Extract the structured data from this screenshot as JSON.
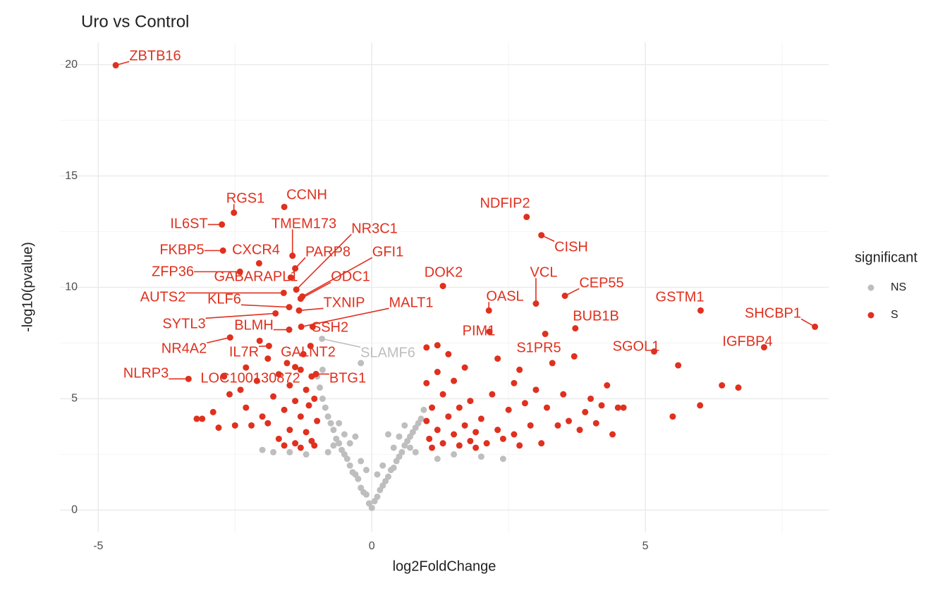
{
  "chart_data": {
    "type": "scatter",
    "title": "Uro vs Control",
    "x_label": "log2FoldChange",
    "y_label": "-log10(pvalue)",
    "xlim": [
      -5.7,
      8.35
    ],
    "ylim": [
      -1,
      21
    ],
    "xticks": [
      -5,
      0,
      5
    ],
    "yticks": [
      0,
      5,
      10,
      15,
      20
    ],
    "xminorticks": [
      -2.5,
      2.5,
      7.5
    ],
    "yminorticks": [
      2.5,
      7.5,
      12.5,
      17.5
    ],
    "grid": true,
    "legend_title": "significant",
    "legend_position": "right",
    "series": [
      {
        "name": "NS",
        "color": "#bebebe",
        "x": [
          -0.91,
          0,
          0.05,
          -0.05,
          0.1,
          -0.1,
          0.15,
          -0.15,
          0.2,
          -0.2,
          0.25,
          -0.25,
          0.3,
          -0.3,
          0.35,
          -0.35,
          0.4,
          -0.4,
          0.45,
          -0.45,
          0.5,
          -0.5,
          0.55,
          -0.55,
          0.6,
          -0.6,
          0.65,
          -0.65,
          0.7,
          -0.7,
          0.75,
          -0.75,
          0.8,
          -0.8,
          0.85,
          -0.85,
          0.9,
          -0.9,
          0.95,
          -0.95,
          0.2,
          -0.2,
          0.4,
          -0.4,
          0.6,
          -0.6,
          0.3,
          -0.3,
          -0.2,
          -0.9,
          -1.0,
          0.8,
          -0.8,
          1.2,
          1.5,
          2.0,
          2.4,
          -1.2,
          -1.5,
          -1.8,
          -2.0,
          0.5,
          -0.5,
          0.7,
          -0.7,
          0.1,
          -0.1
        ],
        "values": [
          7.69,
          0.1,
          0.4,
          0.3,
          0.6,
          0.7,
          0.9,
          0.8,
          1.1,
          1.0,
          1.3,
          1.4,
          1.5,
          1.6,
          1.8,
          1.7,
          1.9,
          2.0,
          2.2,
          2.3,
          2.4,
          2.5,
          2.6,
          2.7,
          2.9,
          3.0,
          3.1,
          3.2,
          3.3,
          3.6,
          3.5,
          3.9,
          3.7,
          4.2,
          3.9,
          4.6,
          4.1,
          5.0,
          4.5,
          5.5,
          2.0,
          2.2,
          2.8,
          3.0,
          3.8,
          3.9,
          3.4,
          3.3,
          6.6,
          6.3,
          6.0,
          2.6,
          2.6,
          2.3,
          2.5,
          2.4,
          2.3,
          2.5,
          2.6,
          2.6,
          2.7,
          3.3,
          3.4,
          2.8,
          2.9,
          1.6,
          1.8
        ],
        "labels": [
          "SLAMF6",
          null,
          null,
          null,
          null,
          null,
          null,
          null,
          null,
          null,
          null,
          null,
          null,
          null,
          null,
          null,
          null,
          null,
          null,
          null,
          null,
          null,
          null,
          null,
          null,
          null,
          null,
          null,
          null,
          null,
          null,
          null,
          null,
          null,
          null,
          null,
          null,
          null,
          null,
          null,
          null,
          null,
          null,
          null,
          null,
          null,
          null,
          null,
          null,
          null,
          null,
          null,
          null,
          null,
          null,
          null,
          null,
          null,
          null,
          null,
          null,
          null,
          null,
          null,
          null,
          null,
          null
        ]
      },
      {
        "name": "S",
        "color": "#e0301e",
        "x": [
          -4.68,
          -2.52,
          -1.6,
          -2.74,
          -1.45,
          -1.38,
          -2.72,
          -2.06,
          -1.4,
          -1.27,
          -2.41,
          -1.48,
          -1.3,
          1.3,
          2.83,
          3.1,
          3.0,
          3.53,
          2.14,
          -1.61,
          -1.51,
          -1.33,
          -1.29,
          6.01,
          3.72,
          8.1,
          -1.76,
          -1.08,
          -1.51,
          2.15,
          7.17,
          -2.59,
          5.16,
          3.17,
          -1.88,
          -1.12,
          -3.35,
          -1.4,
          -1.02,
          -3.2,
          -3.1,
          -2.9,
          -2.8,
          -2.6,
          -2.5,
          -2.3,
          -2.2,
          -2.1,
          -2.0,
          -1.9,
          -1.8,
          -1.7,
          -1.6,
          -1.6,
          -1.5,
          -1.5,
          -1.4,
          -1.4,
          -1.3,
          -1.3,
          -1.3,
          -1.2,
          -1.2,
          -1.15,
          -1.1,
          -1.1,
          -1.05,
          -1.05,
          -2.7,
          -2.4,
          -1.9,
          -1.7,
          -2.3,
          -1.0,
          -1.25,
          -2.05,
          -1.55,
          1.0,
          1.0,
          1.05,
          1.1,
          1.1,
          1.2,
          1.2,
          1.3,
          1.3,
          1.4,
          1.4,
          1.5,
          1.5,
          1.6,
          1.6,
          1.7,
          1.7,
          1.8,
          1.8,
          1.9,
          1.9,
          2.0,
          2.1,
          2.2,
          2.3,
          2.3,
          2.4,
          2.5,
          2.6,
          2.6,
          2.7,
          2.7,
          2.8,
          2.9,
          3.0,
          3.1,
          3.2,
          3.3,
          3.4,
          3.5,
          3.6,
          3.7,
          3.8,
          3.9,
          4.0,
          4.1,
          4.2,
          4.3,
          4.4,
          4.5,
          4.6,
          5.5,
          5.6,
          6.0,
          6.4,
          6.7,
          1.0,
          1.2
        ],
        "values": [
          19.97,
          13.35,
          13.61,
          12.82,
          11.42,
          9.9,
          11.65,
          11.08,
          10.85,
          9.59,
          10.7,
          10.44,
          9.49,
          10.06,
          13.16,
          12.34,
          9.27,
          9.62,
          8.96,
          9.75,
          9.11,
          8.96,
          8.23,
          8.96,
          8.16,
          8.23,
          8.83,
          8.23,
          8.1,
          8.01,
          7.31,
          7.75,
          7.12,
          7.91,
          7.37,
          7.37,
          5.89,
          6.42,
          6.11,
          4.1,
          4.1,
          4.4,
          3.7,
          5.2,
          3.8,
          4.6,
          3.8,
          5.8,
          4.2,
          3.9,
          5.1,
          3.2,
          4.5,
          2.9,
          5.6,
          3.6,
          4.9,
          3.0,
          6.3,
          4.2,
          2.8,
          5.4,
          3.5,
          4.7,
          6.0,
          3.1,
          5.0,
          2.9,
          6.0,
          5.4,
          6.8,
          6.1,
          6.4,
          4.0,
          7.0,
          7.6,
          6.6,
          5.7,
          4.0,
          3.2,
          2.8,
          4.6,
          3.6,
          7.4,
          5.2,
          3.0,
          4.2,
          7.0,
          3.4,
          5.8,
          2.9,
          4.6,
          3.8,
          6.4,
          3.1,
          4.9,
          3.5,
          2.8,
          4.1,
          3.0,
          5.2,
          3.6,
          6.8,
          3.2,
          4.5,
          5.7,
          3.4,
          6.3,
          2.9,
          4.8,
          3.8,
          5.4,
          3.0,
          4.6,
          6.6,
          3.8,
          5.2,
          4.0,
          6.9,
          3.6,
          4.4,
          5.0,
          3.9,
          4.7,
          5.6,
          3.4,
          4.6,
          4.6,
          4.2,
          6.5,
          4.7,
          5.6,
          5.5,
          7.3,
          6.2
        ],
        "labels": [
          "ZBTB16",
          "RGS1",
          "CCNH",
          "IL6ST",
          "TMEM173",
          "NR3C1",
          "FKBP5",
          "CXCR4",
          "PARP8",
          "GFI1",
          "ZFP36",
          "GABARAPL1",
          "ODC1",
          "DOK2",
          "NDFIP2",
          "CISH",
          "VCL",
          "CEP55",
          "OASL",
          "AUTS2",
          "KLF6",
          "TXNIP",
          "MALT1",
          "GSTM1",
          "BUB1B",
          "SHCBP1",
          "SYTL3",
          "SSH2",
          "BLMH",
          "PIM1",
          "IGFBP4",
          "NR4A2",
          "SGOL1",
          "S1PR5",
          "IL7R",
          "GALNT2",
          "NLRP3",
          "LOC100130872",
          "BTG1",
          null,
          null,
          null,
          null,
          null,
          null,
          null,
          null,
          null,
          null,
          null,
          null,
          null,
          null,
          null,
          null,
          null,
          null,
          null,
          null,
          null,
          null,
          null,
          null,
          null,
          null,
          null,
          null,
          null,
          null,
          null,
          null,
          null,
          null,
          null,
          null,
          null,
          null,
          null,
          null,
          null,
          null,
          null,
          null,
          null,
          null,
          null,
          null,
          null,
          null,
          null,
          null,
          null,
          null,
          null,
          null,
          null,
          null,
          null,
          null,
          null,
          null,
          null,
          null,
          null,
          null,
          null,
          null,
          null,
          null,
          null,
          null,
          null,
          null,
          null,
          null,
          null,
          null,
          null,
          null,
          null,
          null,
          null,
          null,
          null,
          null,
          null,
          null,
          null,
          null,
          null,
          null,
          null,
          null,
          null,
          null
        ]
      }
    ]
  }
}
